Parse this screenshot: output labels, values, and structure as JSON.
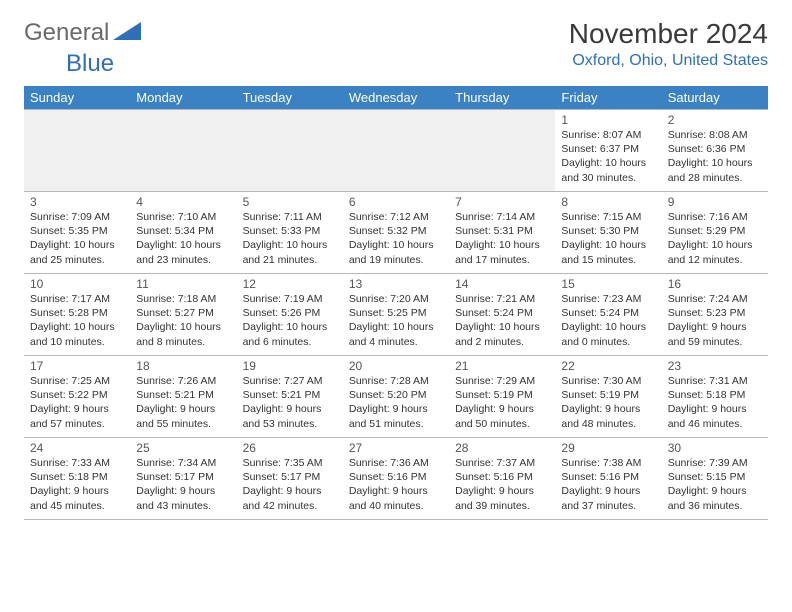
{
  "logo": {
    "text_general": "General",
    "text_blue": "Blue"
  },
  "header": {
    "month_title": "November 2024",
    "location": "Oxford, Ohio, United States"
  },
  "day_headers": [
    "Sunday",
    "Monday",
    "Tuesday",
    "Wednesday",
    "Thursday",
    "Friday",
    "Saturday"
  ],
  "colors": {
    "header_bg": "#3b82c4",
    "header_text": "#ffffff",
    "location_text": "#2e6fb7",
    "cell_border": "#b8b8b8"
  },
  "weeks": [
    [
      null,
      null,
      null,
      null,
      null,
      {
        "day": "1",
        "sunrise": "8:07 AM",
        "sunset": "6:37 PM",
        "daylight": "10 hours and 30 minutes."
      },
      {
        "day": "2",
        "sunrise": "8:08 AM",
        "sunset": "6:36 PM",
        "daylight": "10 hours and 28 minutes."
      }
    ],
    [
      {
        "day": "3",
        "sunrise": "7:09 AM",
        "sunset": "5:35 PM",
        "daylight": "10 hours and 25 minutes."
      },
      {
        "day": "4",
        "sunrise": "7:10 AM",
        "sunset": "5:34 PM",
        "daylight": "10 hours and 23 minutes."
      },
      {
        "day": "5",
        "sunrise": "7:11 AM",
        "sunset": "5:33 PM",
        "daylight": "10 hours and 21 minutes."
      },
      {
        "day": "6",
        "sunrise": "7:12 AM",
        "sunset": "5:32 PM",
        "daylight": "10 hours and 19 minutes."
      },
      {
        "day": "7",
        "sunrise": "7:14 AM",
        "sunset": "5:31 PM",
        "daylight": "10 hours and 17 minutes."
      },
      {
        "day": "8",
        "sunrise": "7:15 AM",
        "sunset": "5:30 PM",
        "daylight": "10 hours and 15 minutes."
      },
      {
        "day": "9",
        "sunrise": "7:16 AM",
        "sunset": "5:29 PM",
        "daylight": "10 hours and 12 minutes."
      }
    ],
    [
      {
        "day": "10",
        "sunrise": "7:17 AM",
        "sunset": "5:28 PM",
        "daylight": "10 hours and 10 minutes."
      },
      {
        "day": "11",
        "sunrise": "7:18 AM",
        "sunset": "5:27 PM",
        "daylight": "10 hours and 8 minutes."
      },
      {
        "day": "12",
        "sunrise": "7:19 AM",
        "sunset": "5:26 PM",
        "daylight": "10 hours and 6 minutes."
      },
      {
        "day": "13",
        "sunrise": "7:20 AM",
        "sunset": "5:25 PM",
        "daylight": "10 hours and 4 minutes."
      },
      {
        "day": "14",
        "sunrise": "7:21 AM",
        "sunset": "5:24 PM",
        "daylight": "10 hours and 2 minutes."
      },
      {
        "day": "15",
        "sunrise": "7:23 AM",
        "sunset": "5:24 PM",
        "daylight": "10 hours and 0 minutes."
      },
      {
        "day": "16",
        "sunrise": "7:24 AM",
        "sunset": "5:23 PM",
        "daylight": "9 hours and 59 minutes."
      }
    ],
    [
      {
        "day": "17",
        "sunrise": "7:25 AM",
        "sunset": "5:22 PM",
        "daylight": "9 hours and 57 minutes."
      },
      {
        "day": "18",
        "sunrise": "7:26 AM",
        "sunset": "5:21 PM",
        "daylight": "9 hours and 55 minutes."
      },
      {
        "day": "19",
        "sunrise": "7:27 AM",
        "sunset": "5:21 PM",
        "daylight": "9 hours and 53 minutes."
      },
      {
        "day": "20",
        "sunrise": "7:28 AM",
        "sunset": "5:20 PM",
        "daylight": "9 hours and 51 minutes."
      },
      {
        "day": "21",
        "sunrise": "7:29 AM",
        "sunset": "5:19 PM",
        "daylight": "9 hours and 50 minutes."
      },
      {
        "day": "22",
        "sunrise": "7:30 AM",
        "sunset": "5:19 PM",
        "daylight": "9 hours and 48 minutes."
      },
      {
        "day": "23",
        "sunrise": "7:31 AM",
        "sunset": "5:18 PM",
        "daylight": "9 hours and 46 minutes."
      }
    ],
    [
      {
        "day": "24",
        "sunrise": "7:33 AM",
        "sunset": "5:18 PM",
        "daylight": "9 hours and 45 minutes."
      },
      {
        "day": "25",
        "sunrise": "7:34 AM",
        "sunset": "5:17 PM",
        "daylight": "9 hours and 43 minutes."
      },
      {
        "day": "26",
        "sunrise": "7:35 AM",
        "sunset": "5:17 PM",
        "daylight": "9 hours and 42 minutes."
      },
      {
        "day": "27",
        "sunrise": "7:36 AM",
        "sunset": "5:16 PM",
        "daylight": "9 hours and 40 minutes."
      },
      {
        "day": "28",
        "sunrise": "7:37 AM",
        "sunset": "5:16 PM",
        "daylight": "9 hours and 39 minutes."
      },
      {
        "day": "29",
        "sunrise": "7:38 AM",
        "sunset": "5:16 PM",
        "daylight": "9 hours and 37 minutes."
      },
      {
        "day": "30",
        "sunrise": "7:39 AM",
        "sunset": "5:15 PM",
        "daylight": "9 hours and 36 minutes."
      }
    ]
  ],
  "labels": {
    "sunrise": "Sunrise: ",
    "sunset": "Sunset: ",
    "daylight": "Daylight: "
  }
}
